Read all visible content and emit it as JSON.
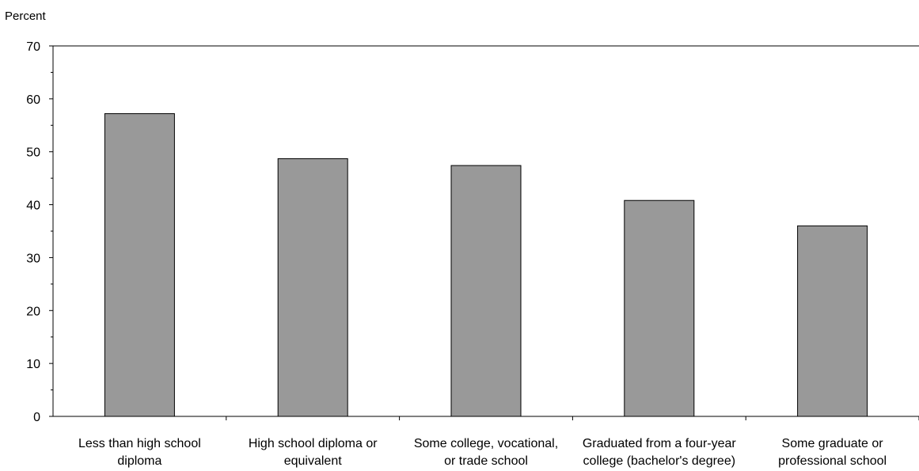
{
  "chart_data": {
    "type": "bar",
    "title": "",
    "xlabel": "",
    "ylabel": "Percent",
    "ylim": [
      0,
      70
    ],
    "yticks": [
      0,
      10,
      20,
      30,
      40,
      50,
      60,
      70
    ],
    "grid": false,
    "legend": "none",
    "bar_color": "#999999",
    "categories": [
      [
        "Less than high school",
        "diploma"
      ],
      [
        "High school diploma or",
        "equivalent"
      ],
      [
        "Some college, vocational,",
        "or trade school"
      ],
      [
        "Graduated from a four-year",
        "college (bachelor's degree)"
      ],
      [
        "Some graduate or",
        "professional school"
      ]
    ],
    "values": [
      57.2,
      48.7,
      47.4,
      40.8,
      36.0
    ]
  }
}
